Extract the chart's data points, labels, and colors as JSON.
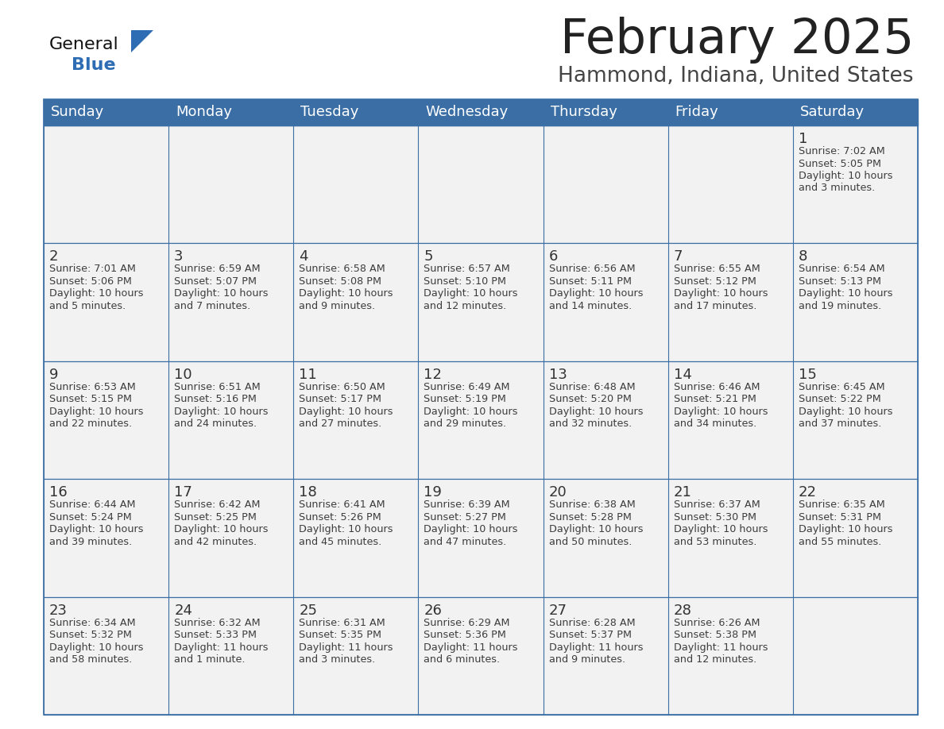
{
  "title": "February 2025",
  "subtitle": "Hammond, Indiana, United States",
  "days_of_week": [
    "Sunday",
    "Monday",
    "Tuesday",
    "Wednesday",
    "Thursday",
    "Friday",
    "Saturday"
  ],
  "header_bg": "#3a6ea5",
  "header_text": "#ffffff",
  "row_bg": "#f2f2f2",
  "cell_text": "#333333",
  "day_number_color": "#333333",
  "border_color": "#3a6ea5",
  "logo_black": "#111111",
  "logo_blue": "#2e6db4",
  "title_color": "#222222",
  "subtitle_color": "#444444",
  "calendar_data": [
    [
      null,
      null,
      null,
      null,
      null,
      null,
      {
        "day": 1,
        "sunrise": "7:02 AM",
        "sunset": "5:05 PM",
        "daylight": "10 hours and 3 minutes."
      }
    ],
    [
      {
        "day": 2,
        "sunrise": "7:01 AM",
        "sunset": "5:06 PM",
        "daylight": "10 hours and 5 minutes."
      },
      {
        "day": 3,
        "sunrise": "6:59 AM",
        "sunset": "5:07 PM",
        "daylight": "10 hours and 7 minutes."
      },
      {
        "day": 4,
        "sunrise": "6:58 AM",
        "sunset": "5:08 PM",
        "daylight": "10 hours and 9 minutes."
      },
      {
        "day": 5,
        "sunrise": "6:57 AM",
        "sunset": "5:10 PM",
        "daylight": "10 hours and 12 minutes."
      },
      {
        "day": 6,
        "sunrise": "6:56 AM",
        "sunset": "5:11 PM",
        "daylight": "10 hours and 14 minutes."
      },
      {
        "day": 7,
        "sunrise": "6:55 AM",
        "sunset": "5:12 PM",
        "daylight": "10 hours and 17 minutes."
      },
      {
        "day": 8,
        "sunrise": "6:54 AM",
        "sunset": "5:13 PM",
        "daylight": "10 hours and 19 minutes."
      }
    ],
    [
      {
        "day": 9,
        "sunrise": "6:53 AM",
        "sunset": "5:15 PM",
        "daylight": "10 hours and 22 minutes."
      },
      {
        "day": 10,
        "sunrise": "6:51 AM",
        "sunset": "5:16 PM",
        "daylight": "10 hours and 24 minutes."
      },
      {
        "day": 11,
        "sunrise": "6:50 AM",
        "sunset": "5:17 PM",
        "daylight": "10 hours and 27 minutes."
      },
      {
        "day": 12,
        "sunrise": "6:49 AM",
        "sunset": "5:19 PM",
        "daylight": "10 hours and 29 minutes."
      },
      {
        "day": 13,
        "sunrise": "6:48 AM",
        "sunset": "5:20 PM",
        "daylight": "10 hours and 32 minutes."
      },
      {
        "day": 14,
        "sunrise": "6:46 AM",
        "sunset": "5:21 PM",
        "daylight": "10 hours and 34 minutes."
      },
      {
        "day": 15,
        "sunrise": "6:45 AM",
        "sunset": "5:22 PM",
        "daylight": "10 hours and 37 minutes."
      }
    ],
    [
      {
        "day": 16,
        "sunrise": "6:44 AM",
        "sunset": "5:24 PM",
        "daylight": "10 hours and 39 minutes."
      },
      {
        "day": 17,
        "sunrise": "6:42 AM",
        "sunset": "5:25 PM",
        "daylight": "10 hours and 42 minutes."
      },
      {
        "day": 18,
        "sunrise": "6:41 AM",
        "sunset": "5:26 PM",
        "daylight": "10 hours and 45 minutes."
      },
      {
        "day": 19,
        "sunrise": "6:39 AM",
        "sunset": "5:27 PM",
        "daylight": "10 hours and 47 minutes."
      },
      {
        "day": 20,
        "sunrise": "6:38 AM",
        "sunset": "5:28 PM",
        "daylight": "10 hours and 50 minutes."
      },
      {
        "day": 21,
        "sunrise": "6:37 AM",
        "sunset": "5:30 PM",
        "daylight": "10 hours and 53 minutes."
      },
      {
        "day": 22,
        "sunrise": "6:35 AM",
        "sunset": "5:31 PM",
        "daylight": "10 hours and 55 minutes."
      }
    ],
    [
      {
        "day": 23,
        "sunrise": "6:34 AM",
        "sunset": "5:32 PM",
        "daylight": "10 hours and 58 minutes."
      },
      {
        "day": 24,
        "sunrise": "6:32 AM",
        "sunset": "5:33 PM",
        "daylight": "11 hours and 1 minute."
      },
      {
        "day": 25,
        "sunrise": "6:31 AM",
        "sunset": "5:35 PM",
        "daylight": "11 hours and 3 minutes."
      },
      {
        "day": 26,
        "sunrise": "6:29 AM",
        "sunset": "5:36 PM",
        "daylight": "11 hours and 6 minutes."
      },
      {
        "day": 27,
        "sunrise": "6:28 AM",
        "sunset": "5:37 PM",
        "daylight": "11 hours and 9 minutes."
      },
      {
        "day": 28,
        "sunrise": "6:26 AM",
        "sunset": "5:38 PM",
        "daylight": "11 hours and 12 minutes."
      },
      null
    ]
  ]
}
